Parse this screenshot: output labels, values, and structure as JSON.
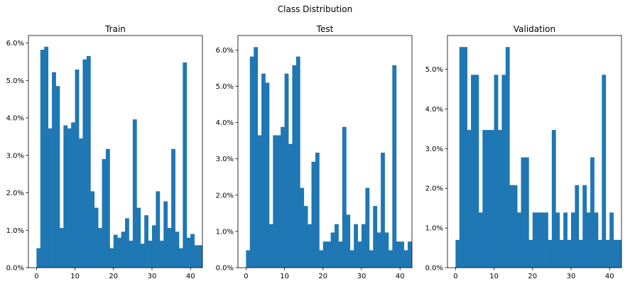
{
  "figure": {
    "suptitle": "Class Distribution"
  },
  "bar_color": "#1f77b4",
  "chart_data": [
    {
      "type": "bar",
      "title": "Train",
      "xlabel": "",
      "ylabel": "",
      "x_bins_start": 0,
      "x_bin_width": 1,
      "xlim": [
        -2.1,
        43.1
      ],
      "ylim": [
        0,
        6.2
      ],
      "xticks": [
        0,
        10,
        20,
        30,
        40
      ],
      "yticks": [
        0,
        1,
        2,
        3,
        4,
        5,
        6
      ],
      "ytick_labels": [
        "0.0%",
        "1.0%",
        "2.0%",
        "3.0%",
        "4.0%",
        "5.0%",
        "6.0%"
      ],
      "grid": false,
      "values": [
        0.52,
        5.82,
        5.9,
        3.72,
        5.22,
        4.85,
        1.06,
        3.8,
        3.72,
        3.88,
        5.29,
        3.45,
        5.56,
        5.65,
        2.04,
        1.6,
        1.06,
        2.9,
        3.17,
        0.52,
        0.88,
        0.8,
        0.96,
        1.32,
        0.72,
        3.96,
        1.6,
        0.64,
        1.4,
        0.72,
        1.13,
        2.04,
        0.72,
        1.77,
        1.06,
        3.17,
        0.96,
        0.52,
        5.48,
        0.8,
        0.9,
        0.6,
        0.6
      ]
    },
    {
      "type": "bar",
      "title": "Test",
      "xlabel": "",
      "ylabel": "",
      "x_bins_start": 0,
      "x_bin_width": 1,
      "xlim": [
        -2.1,
        43.1
      ],
      "ylim": [
        0,
        6.4
      ],
      "xticks": [
        0,
        10,
        20,
        30,
        40
      ],
      "yticks": [
        0,
        1,
        2,
        3,
        4,
        5,
        6
      ],
      "ytick_labels": [
        "0.0%",
        "1.0%",
        "2.0%",
        "3.0%",
        "4.0%",
        "5.0%",
        "6.0%"
      ],
      "grid": false,
      "values": [
        0.48,
        5.82,
        6.08,
        3.65,
        5.35,
        5.1,
        1.2,
        3.65,
        3.65,
        3.88,
        5.35,
        3.41,
        5.58,
        5.82,
        2.2,
        1.7,
        1.2,
        2.92,
        3.17,
        0.48,
        0.72,
        0.72,
        0.97,
        1.2,
        0.72,
        3.88,
        1.46,
        0.48,
        1.2,
        0.72,
        1.2,
        2.2,
        0.48,
        1.7,
        0.97,
        3.17,
        0.97,
        0.48,
        5.58,
        0.72,
        0.72,
        0.48,
        0.72
      ]
    },
    {
      "type": "bar",
      "title": "Validation",
      "xlabel": "",
      "ylabel": "",
      "x_bins_start": 0,
      "x_bin_width": 1,
      "xlim": [
        -2.1,
        43.1
      ],
      "ylim": [
        0,
        5.85
      ],
      "xticks": [
        0,
        10,
        20,
        30,
        40
      ],
      "yticks": [
        0,
        1,
        2,
        3,
        4,
        5
      ],
      "ytick_labels": [
        "0.0%",
        "1.0%",
        "2.0%",
        "3.0%",
        "4.0%",
        "5.0%"
      ],
      "grid": false,
      "values": [
        0.7,
        5.56,
        5.56,
        3.47,
        4.86,
        4.86,
        1.39,
        3.47,
        3.47,
        3.47,
        4.86,
        3.47,
        4.86,
        5.56,
        2.08,
        2.08,
        1.39,
        2.78,
        2.78,
        0.7,
        1.39,
        1.39,
        1.39,
        1.39,
        0.7,
        3.47,
        1.39,
        0.7,
        1.39,
        0.7,
        1.39,
        2.08,
        0.7,
        2.08,
        1.39,
        2.78,
        1.39,
        0.7,
        4.86,
        0.7,
        1.39,
        0.7,
        0.7
      ]
    }
  ]
}
